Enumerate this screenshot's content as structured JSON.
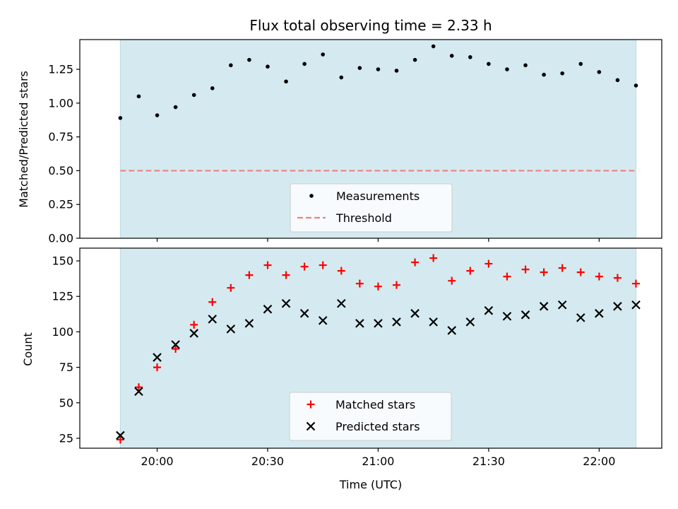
{
  "chart_data": [
    {
      "type": "scatter",
      "title": "Flux total observing time = 2.33 h",
      "xlabel": "",
      "ylabel": "Matched/Predicted stars",
      "ylim": [
        0,
        1.47
      ],
      "yticks": [
        0.0,
        0.25,
        0.5,
        0.75,
        1.0,
        1.25
      ],
      "ytick_labels": [
        "0.00",
        "0.25",
        "0.50",
        "0.75",
        "1.00",
        "1.25"
      ],
      "xlim": [
        "19:39",
        "22:17"
      ],
      "xticks": [
        "20:00",
        "20:30",
        "21:00",
        "21:30",
        "22:00"
      ],
      "shaded_span": [
        "19:50",
        "22:10"
      ],
      "shade_color": "#d4eaf0",
      "legend_position": "lower-center",
      "series": [
        {
          "name": "Measurements",
          "marker": "dot",
          "color": "#000000",
          "x": [
            "19:50",
            "19:55",
            "20:00",
            "20:05",
            "20:10",
            "20:15",
            "20:20",
            "20:25",
            "20:30",
            "20:35",
            "20:40",
            "20:45",
            "20:50",
            "20:55",
            "21:00",
            "21:05",
            "21:10",
            "21:15",
            "21:20",
            "21:25",
            "21:30",
            "21:35",
            "21:40",
            "21:45",
            "21:50",
            "21:55",
            "22:00",
            "22:05",
            "22:10"
          ],
          "y": [
            0.89,
            1.05,
            0.91,
            0.97,
            1.06,
            1.11,
            1.28,
            1.32,
            1.27,
            1.16,
            1.29,
            1.36,
            1.19,
            1.26,
            1.25,
            1.24,
            1.32,
            1.42,
            1.35,
            1.34,
            1.29,
            1.25,
            1.28,
            1.21,
            1.22,
            1.29,
            1.23,
            1.17,
            1.13
          ]
        },
        {
          "name": "Threshold",
          "marker": "dashed-line",
          "color": "#f08080",
          "y": 0.5
        }
      ]
    },
    {
      "type": "scatter",
      "title": "",
      "xlabel": "Time (UTC)",
      "ylabel": "Count",
      "ylim": [
        18,
        159
      ],
      "yticks": [
        25,
        50,
        75,
        100,
        125,
        150
      ],
      "ytick_labels": [
        "25",
        "50",
        "75",
        "100",
        "125",
        "150"
      ],
      "xlim": [
        "19:39",
        "22:17"
      ],
      "xticks": [
        "20:00",
        "20:30",
        "21:00",
        "21:30",
        "22:00"
      ],
      "xtick_labels": [
        "20:00",
        "20:30",
        "21:00",
        "21:30",
        "22:00"
      ],
      "shaded_span": [
        "19:50",
        "22:10"
      ],
      "shade_color": "#d4eaf0",
      "legend_position": "lower-center",
      "series": [
        {
          "name": "Matched stars",
          "marker": "plus",
          "color": "#ff0000",
          "x": [
            "19:50",
            "19:55",
            "20:00",
            "20:05",
            "20:10",
            "20:15",
            "20:20",
            "20:25",
            "20:30",
            "20:35",
            "20:40",
            "20:45",
            "20:50",
            "20:55",
            "21:00",
            "21:05",
            "21:10",
            "21:15",
            "21:20",
            "21:25",
            "21:30",
            "21:35",
            "21:40",
            "21:45",
            "21:50",
            "21:55",
            "22:00",
            "22:05",
            "22:10"
          ],
          "y": [
            24,
            61,
            75,
            88,
            105,
            121,
            131,
            140,
            147,
            140,
            146,
            147,
            143,
            134,
            132,
            133,
            149,
            152,
            136,
            143,
            148,
            139,
            144,
            142,
            145,
            142,
            139,
            138,
            134
          ]
        },
        {
          "name": "Predicted stars",
          "marker": "x",
          "color": "#000000",
          "x": [
            "19:50",
            "19:55",
            "20:00",
            "20:05",
            "20:10",
            "20:15",
            "20:20",
            "20:25",
            "20:30",
            "20:35",
            "20:40",
            "20:45",
            "20:50",
            "20:55",
            "21:00",
            "21:05",
            "21:10",
            "21:15",
            "21:20",
            "21:25",
            "21:30",
            "21:35",
            "21:40",
            "21:45",
            "21:50",
            "21:55",
            "22:00",
            "22:05",
            "22:10"
          ],
          "y": [
            27,
            58,
            82,
            91,
            99,
            109,
            102,
            106,
            116,
            120,
            113,
            108,
            120,
            106,
            106,
            107,
            113,
            107,
            101,
            107,
            115,
            111,
            112,
            118,
            119,
            110,
            113,
            118,
            119
          ]
        }
      ]
    }
  ]
}
